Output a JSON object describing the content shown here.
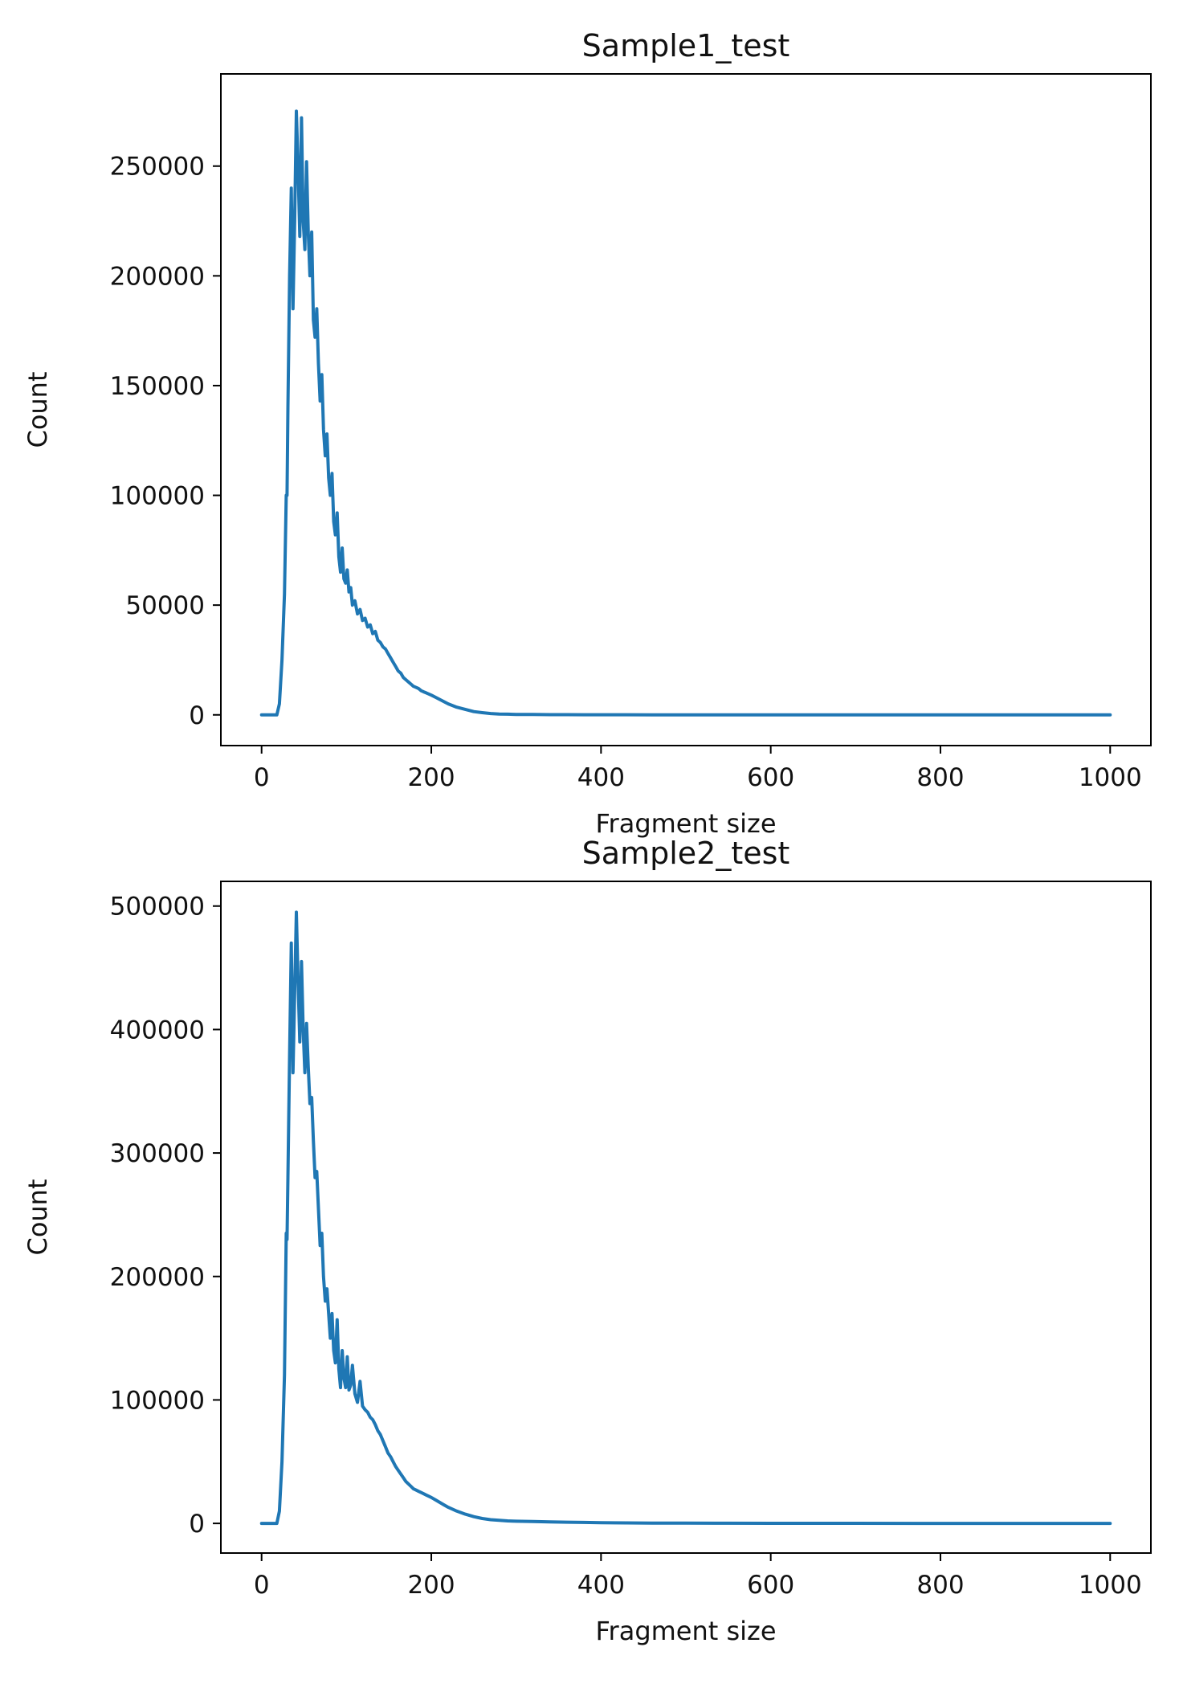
{
  "chart_data": [
    {
      "type": "line",
      "title": "Sample1_test",
      "xlabel": "Fragment size",
      "ylabel": "Count",
      "xlim": [
        -48,
        1048
      ],
      "ylim": [
        -14000,
        292000
      ],
      "xticks": [
        0,
        200,
        400,
        600,
        800,
        1000
      ],
      "yticks": [
        0,
        50000,
        100000,
        150000,
        200000,
        250000
      ],
      "xtick_labels": [
        "0",
        "200",
        "400",
        "600",
        "800",
        "1000"
      ],
      "ytick_labels": [
        "0",
        "50000",
        "100000",
        "150000",
        "200000",
        "250000"
      ],
      "grid": false,
      "color": "#1f77b4",
      "series": [
        {
          "x": [
            0,
            10,
            18,
            21,
            24,
            27,
            29,
            30,
            31,
            33,
            35,
            37,
            39,
            41,
            43,
            45,
            47,
            49,
            51,
            53,
            55,
            57,
            59,
            61,
            63,
            65,
            67,
            69,
            71,
            73,
            75,
            77,
            79,
            81,
            83,
            85,
            87,
            89,
            91,
            93,
            95,
            97,
            99,
            101,
            103,
            105,
            107,
            110,
            113,
            116,
            119,
            122,
            125,
            128,
            131,
            134,
            137,
            140,
            143,
            146,
            149,
            152,
            155,
            158,
            161,
            164,
            167,
            170,
            173,
            176,
            179,
            182,
            185,
            188,
            191,
            194,
            197,
            200,
            205,
            210,
            215,
            220,
            230,
            240,
            250,
            260,
            270,
            280,
            290,
            300,
            320,
            340,
            360,
            380,
            400,
            430,
            460,
            500,
            550,
            600,
            700,
            800,
            900,
            1000
          ],
          "y": [
            0,
            0,
            0,
            5000,
            25000,
            55000,
            100000,
            100000,
            140000,
            200000,
            240000,
            185000,
            225000,
            275000,
            250000,
            218000,
            272000,
            225000,
            212000,
            252000,
            220000,
            200000,
            220000,
            180000,
            172000,
            185000,
            160000,
            143000,
            155000,
            130000,
            118000,
            128000,
            108000,
            100000,
            110000,
            88000,
            82000,
            92000,
            72000,
            65000,
            76000,
            62000,
            60000,
            66000,
            56000,
            58000,
            50000,
            52000,
            46000,
            48000,
            43000,
            44000,
            40000,
            41000,
            37000,
            38000,
            34000,
            33000,
            31000,
            30000,
            28000,
            26000,
            24000,
            22000,
            20000,
            19000,
            17000,
            16000,
            15000,
            14000,
            13000,
            12500,
            12000,
            11000,
            10500,
            10000,
            9500,
            9000,
            8000,
            7000,
            6000,
            5000,
            3500,
            2500,
            1500,
            1000,
            600,
            400,
            300,
            200,
            150,
            100,
            80,
            60,
            50,
            40,
            30,
            20,
            15,
            10,
            5,
            3,
            2,
            1
          ]
        }
      ]
    },
    {
      "type": "line",
      "title": "Sample2_test",
      "xlabel": "Fragment size",
      "ylabel": "Count",
      "xlim": [
        -48,
        1048
      ],
      "ylim": [
        -24000,
        520000
      ],
      "xticks": [
        0,
        200,
        400,
        600,
        800,
        1000
      ],
      "yticks": [
        0,
        100000,
        200000,
        300000,
        400000,
        500000
      ],
      "xtick_labels": [
        "0",
        "200",
        "400",
        "600",
        "800",
        "1000"
      ],
      "ytick_labels": [
        "0",
        "100000",
        "200000",
        "300000",
        "400000",
        "500000"
      ],
      "grid": false,
      "color": "#1f77b4",
      "series": [
        {
          "x": [
            0,
            10,
            18,
            21,
            24,
            27,
            29,
            30,
            31,
            33,
            35,
            37,
            39,
            41,
            43,
            45,
            47,
            49,
            51,
            53,
            55,
            57,
            59,
            61,
            63,
            65,
            67,
            69,
            71,
            73,
            75,
            77,
            79,
            81,
            83,
            85,
            87,
            89,
            91,
            93,
            95,
            97,
            99,
            101,
            103,
            105,
            107,
            110,
            113,
            116,
            119,
            122,
            125,
            128,
            131,
            134,
            137,
            140,
            143,
            146,
            149,
            152,
            155,
            158,
            161,
            164,
            167,
            170,
            173,
            176,
            179,
            182,
            185,
            188,
            191,
            194,
            197,
            200,
            205,
            210,
            215,
            220,
            230,
            240,
            250,
            260,
            270,
            280,
            290,
            300,
            320,
            340,
            360,
            380,
            400,
            430,
            460,
            500,
            550,
            600,
            700,
            800,
            900,
            1000
          ],
          "y": [
            0,
            0,
            0,
            10000,
            50000,
            120000,
            235000,
            230000,
            280000,
            380000,
            470000,
            365000,
            430000,
            495000,
            440000,
            390000,
            455000,
            400000,
            365000,
            405000,
            370000,
            340000,
            345000,
            310000,
            280000,
            285000,
            255000,
            225000,
            235000,
            200000,
            180000,
            190000,
            170000,
            150000,
            170000,
            140000,
            130000,
            165000,
            125000,
            110000,
            140000,
            118000,
            110000,
            135000,
            108000,
            112000,
            128000,
            105000,
            98000,
            115000,
            95000,
            92000,
            90000,
            86000,
            84000,
            80000,
            75000,
            72000,
            67000,
            62000,
            57000,
            54000,
            50000,
            46000,
            43000,
            40000,
            37000,
            34000,
            32000,
            30000,
            28000,
            27000,
            26000,
            25000,
            24000,
            23000,
            22000,
            21000,
            19000,
            17000,
            15000,
            13000,
            10000,
            7500,
            5500,
            4000,
            3000,
            2500,
            2000,
            1800,
            1500,
            1200,
            1000,
            800,
            600,
            400,
            300,
            200,
            150,
            100,
            50,
            30,
            20,
            10
          ]
        }
      ]
    }
  ]
}
